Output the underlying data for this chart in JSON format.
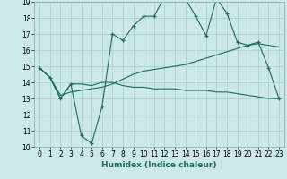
{
  "title": "",
  "xlabel": "Humidex (Indice chaleur)",
  "ylabel": "",
  "bg_color": "#cce8e8",
  "line_color": "#1a6b5a",
  "grid_color": "#aacccc",
  "xlim": [
    -0.5,
    23.5
  ],
  "ylim": [
    10,
    19
  ],
  "xticks": [
    0,
    1,
    2,
    3,
    4,
    5,
    6,
    7,
    8,
    9,
    10,
    11,
    12,
    13,
    14,
    15,
    16,
    17,
    18,
    19,
    20,
    21,
    22,
    23
  ],
  "yticks": [
    10,
    11,
    12,
    13,
    14,
    15,
    16,
    17,
    18,
    19
  ],
  "line1_x": [
    0,
    1,
    2,
    3,
    4,
    5,
    6,
    7,
    8,
    9,
    10,
    11,
    12,
    13,
    14,
    15,
    16,
    17,
    18,
    19,
    20,
    21,
    22,
    23
  ],
  "line1_y": [
    14.9,
    14.3,
    13.0,
    13.9,
    10.7,
    10.2,
    12.5,
    17.0,
    16.6,
    17.5,
    18.1,
    18.1,
    19.3,
    19.1,
    19.2,
    18.1,
    16.9,
    19.2,
    18.3,
    16.5,
    16.3,
    16.5,
    14.9,
    13.0
  ],
  "line2_x": [
    0,
    1,
    2,
    3,
    4,
    5,
    6,
    7,
    8,
    9,
    10,
    11,
    12,
    13,
    14,
    15,
    16,
    17,
    18,
    19,
    20,
    21,
    22,
    23
  ],
  "line2_y": [
    14.9,
    14.3,
    13.0,
    13.9,
    13.9,
    13.8,
    14.0,
    14.0,
    13.8,
    13.7,
    13.7,
    13.6,
    13.6,
    13.6,
    13.5,
    13.5,
    13.5,
    13.4,
    13.4,
    13.3,
    13.2,
    13.1,
    13.0,
    13.0
  ],
  "line3_x": [
    0,
    1,
    2,
    3,
    4,
    5,
    6,
    7,
    8,
    9,
    10,
    11,
    12,
    13,
    14,
    15,
    16,
    17,
    18,
    19,
    20,
    21,
    22,
    23
  ],
  "line3_y": [
    14.9,
    14.3,
    13.2,
    13.4,
    13.5,
    13.6,
    13.7,
    13.9,
    14.2,
    14.5,
    14.7,
    14.8,
    14.9,
    15.0,
    15.1,
    15.3,
    15.5,
    15.7,
    15.9,
    16.1,
    16.3,
    16.4,
    16.3,
    16.2
  ],
  "tick_fontsize": 5.5,
  "xlabel_fontsize": 6.5
}
